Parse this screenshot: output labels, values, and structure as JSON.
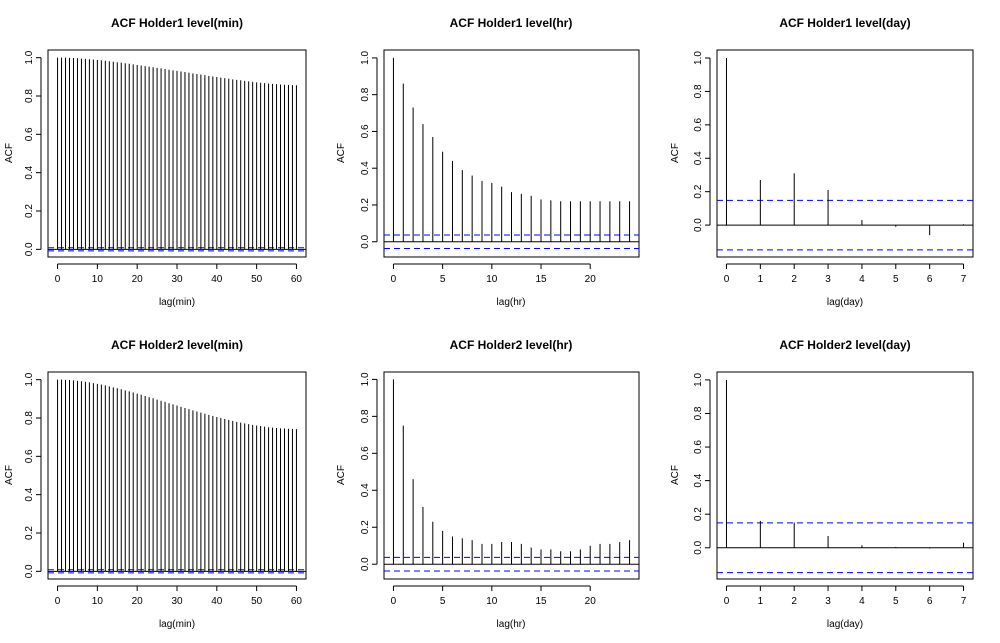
{
  "chart_data": [
    {
      "type": "bar",
      "title": "ACF Holder1 level(min)",
      "xlabel": "lag(min)",
      "ylabel": "ACF",
      "xlim": [
        -2.4,
        62.4
      ],
      "ylim": [
        -0.04,
        1.04
      ],
      "xticks": [
        0,
        10,
        20,
        30,
        40,
        50,
        60
      ],
      "yticks": [
        0.0,
        0.2,
        0.4,
        0.6,
        0.8,
        1.0
      ],
      "ytick_labels": [
        "0.0",
        "0.2",
        "0.4",
        "0.6",
        "0.8",
        "1.0"
      ],
      "conf_band": 0.008,
      "lags": [
        0,
        1,
        2,
        3,
        4,
        5,
        6,
        7,
        8,
        9,
        10,
        11,
        12,
        13,
        14,
        15,
        16,
        17,
        18,
        19,
        20,
        21,
        22,
        23,
        24,
        25,
        26,
        27,
        28,
        29,
        30,
        31,
        32,
        33,
        34,
        35,
        36,
        37,
        38,
        39,
        40,
        41,
        42,
        43,
        44,
        45,
        46,
        47,
        48,
        49,
        50,
        51,
        52,
        53,
        54,
        55,
        56,
        57,
        58,
        59,
        60
      ],
      "values": [
        1.0,
        1.0,
        1.0,
        0.999,
        0.998,
        0.997,
        0.995,
        0.994,
        0.992,
        0.99,
        0.988,
        0.986,
        0.984,
        0.981,
        0.979,
        0.976,
        0.974,
        0.971,
        0.968,
        0.965,
        0.962,
        0.959,
        0.956,
        0.953,
        0.95,
        0.947,
        0.944,
        0.941,
        0.937,
        0.934,
        0.931,
        0.928,
        0.925,
        0.921,
        0.918,
        0.915,
        0.912,
        0.909,
        0.905,
        0.902,
        0.899,
        0.896,
        0.893,
        0.89,
        0.887,
        0.884,
        0.882,
        0.879,
        0.876,
        0.874,
        0.871,
        0.869,
        0.867,
        0.865,
        0.863,
        0.862,
        0.86,
        0.859,
        0.858,
        0.857,
        0.856
      ]
    },
    {
      "type": "bar",
      "title": "ACF Holder1 level(hr)",
      "xlabel": "lag(hr)",
      "ylabel": "ACF",
      "xlim": [
        -0.96,
        24.96
      ],
      "ylim": [
        -0.083,
        1.043
      ],
      "xticks": [
        0,
        5,
        10,
        15,
        20
      ],
      "yticks": [
        0.0,
        0.2,
        0.4,
        0.6,
        0.8,
        1.0
      ],
      "ytick_labels": [
        "0.0",
        "0.2",
        "0.4",
        "0.6",
        "0.8",
        "1.0"
      ],
      "conf_band": 0.037,
      "lags": [
        0,
        1,
        2,
        3,
        4,
        5,
        6,
        7,
        8,
        9,
        10,
        11,
        12,
        13,
        14,
        15,
        16,
        17,
        18,
        19,
        20,
        21,
        22,
        23,
        24
      ],
      "values": [
        1.0,
        0.86,
        0.73,
        0.64,
        0.57,
        0.49,
        0.44,
        0.39,
        0.36,
        0.33,
        0.32,
        0.3,
        0.27,
        0.26,
        0.25,
        0.23,
        0.225,
        0.22,
        0.22,
        0.22,
        0.22,
        0.22,
        0.22,
        0.22,
        0.22
      ]
    },
    {
      "type": "bar",
      "title": "ACF Holder1 level(day)",
      "xlabel": "lag(day)",
      "ylabel": "ACF",
      "xlim": [
        -0.28,
        7.28
      ],
      "ylim": [
        -0.191,
        1.048
      ],
      "xticks": [
        0,
        1,
        2,
        3,
        4,
        5,
        6,
        7
      ],
      "yticks": [
        0.0,
        0.2,
        0.4,
        0.6,
        0.8,
        1.0
      ],
      "ytick_labels": [
        "0.0",
        "0.2",
        "0.4",
        "0.6",
        "0.8",
        "1.0"
      ],
      "conf_band": 0.148,
      "lags": [
        0,
        1,
        2,
        3,
        4,
        5,
        6,
        7
      ],
      "values": [
        1.0,
        0.27,
        0.31,
        0.21,
        0.03,
        -0.01,
        -0.06,
        0.005
      ]
    },
    {
      "type": "bar",
      "title": "ACF Holder2 level(min)",
      "xlabel": "lag(min)",
      "ylabel": "ACF",
      "xlim": [
        -2.4,
        62.4
      ],
      "ylim": [
        -0.04,
        1.04
      ],
      "xticks": [
        0,
        10,
        20,
        30,
        40,
        50,
        60
      ],
      "yticks": [
        0.0,
        0.2,
        0.4,
        0.6,
        0.8,
        1.0
      ],
      "ytick_labels": [
        "0.0",
        "0.2",
        "0.4",
        "0.6",
        "0.8",
        "1.0"
      ],
      "conf_band": 0.008,
      "lags": [
        0,
        1,
        2,
        3,
        4,
        5,
        6,
        7,
        8,
        9,
        10,
        11,
        12,
        13,
        14,
        15,
        16,
        17,
        18,
        19,
        20,
        21,
        22,
        23,
        24,
        25,
        26,
        27,
        28,
        29,
        30,
        31,
        32,
        33,
        34,
        35,
        36,
        37,
        38,
        39,
        40,
        41,
        42,
        43,
        44,
        45,
        46,
        47,
        48,
        49,
        50,
        51,
        52,
        53,
        54,
        55,
        56,
        57,
        58,
        59,
        60
      ],
      "values": [
        1.0,
        1.0,
        0.999,
        0.998,
        0.996,
        0.994,
        0.992,
        0.989,
        0.986,
        0.982,
        0.978,
        0.974,
        0.97,
        0.965,
        0.96,
        0.955,
        0.95,
        0.944,
        0.939,
        0.933,
        0.927,
        0.921,
        0.915,
        0.909,
        0.903,
        0.896,
        0.89,
        0.884,
        0.877,
        0.871,
        0.865,
        0.858,
        0.852,
        0.846,
        0.84,
        0.834,
        0.828,
        0.822,
        0.816,
        0.811,
        0.805,
        0.8,
        0.795,
        0.79,
        0.785,
        0.78,
        0.776,
        0.772,
        0.768,
        0.764,
        0.761,
        0.758,
        0.755,
        0.752,
        0.75,
        0.748,
        0.746,
        0.745,
        0.744,
        0.743,
        0.742
      ]
    },
    {
      "type": "bar",
      "title": "ACF Holder2 level(hr)",
      "xlabel": "lag(hr)",
      "ylabel": "ACF",
      "xlim": [
        -0.96,
        24.96
      ],
      "ylim": [
        -0.08,
        1.04
      ],
      "xticks": [
        0,
        5,
        10,
        15,
        20
      ],
      "yticks": [
        0.0,
        0.2,
        0.4,
        0.6,
        0.8,
        1.0
      ],
      "ytick_labels": [
        "0.0",
        "0.2",
        "0.4",
        "0.6",
        "0.8",
        "1.0"
      ],
      "conf_band": 0.037,
      "lags": [
        0,
        1,
        2,
        3,
        4,
        5,
        6,
        7,
        8,
        9,
        10,
        11,
        12,
        13,
        14,
        15,
        16,
        17,
        18,
        19,
        20,
        21,
        22,
        23,
        24
      ],
      "values": [
        1.0,
        0.75,
        0.46,
        0.31,
        0.23,
        0.18,
        0.15,
        0.14,
        0.13,
        0.11,
        0.11,
        0.12,
        0.12,
        0.11,
        0.09,
        0.08,
        0.08,
        0.07,
        0.07,
        0.08,
        0.1,
        0.11,
        0.11,
        0.12,
        0.13
      ]
    },
    {
      "type": "bar",
      "title": "ACF Holder2 level(day)",
      "xlabel": "lag(day)",
      "ylabel": "ACF",
      "xlim": [
        -0.28,
        7.28
      ],
      "ylim": [
        -0.186,
        1.047
      ],
      "xticks": [
        0,
        1,
        2,
        3,
        4,
        5,
        6,
        7
      ],
      "yticks": [
        0.0,
        0.2,
        0.4,
        0.6,
        0.8,
        1.0
      ],
      "ytick_labels": [
        "0.0",
        "0.2",
        "0.4",
        "0.6",
        "0.8",
        "1.0"
      ],
      "conf_band": 0.148,
      "lags": [
        0,
        1,
        2,
        3,
        4,
        5,
        6,
        7
      ],
      "values": [
        1.0,
        0.16,
        0.15,
        0.07,
        0.015,
        0.005,
        -0.005,
        0.03
      ]
    }
  ],
  "colors": {
    "conf_line": "#0000ff",
    "spike": "#000000",
    "axis": "#000000"
  }
}
